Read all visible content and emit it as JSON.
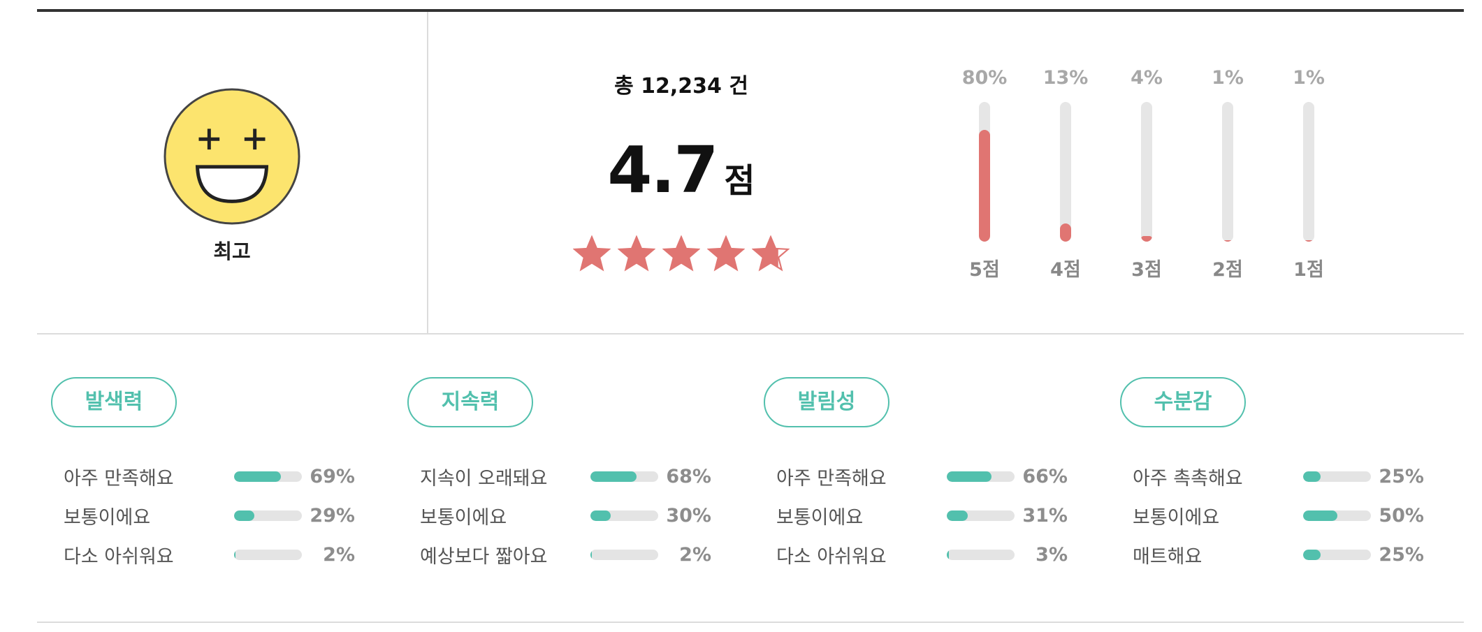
{
  "grade": {
    "label": "최고",
    "icon": "laughing-face-icon"
  },
  "summary": {
    "count_text": "총 12,234 건",
    "score": "4.7",
    "score_unit": "점",
    "rating_value": 4.7,
    "rating_max": 5
  },
  "distribution": [
    {
      "pct_text": "80%",
      "value": 80,
      "label": "5점"
    },
    {
      "pct_text": "13%",
      "value": 13,
      "label": "4점"
    },
    {
      "pct_text": "4%",
      "value": 4,
      "label": "3점"
    },
    {
      "pct_text": "1%",
      "value": 1,
      "label": "2점"
    },
    {
      "pct_text": "1%",
      "value": 1,
      "label": "1점"
    }
  ],
  "attributes": [
    {
      "title": "발색력",
      "rows": [
        {
          "label": "아주 만족해요",
          "pct_text": "69%",
          "value": 69
        },
        {
          "label": "보통이에요",
          "pct_text": "29%",
          "value": 29
        },
        {
          "label": "다소 아쉬워요",
          "pct_text": "2%",
          "value": 2
        }
      ]
    },
    {
      "title": "지속력",
      "rows": [
        {
          "label": "지속이 오래돼요",
          "pct_text": "68%",
          "value": 68
        },
        {
          "label": "보통이에요",
          "pct_text": "30%",
          "value": 30
        },
        {
          "label": "예상보다 짧아요",
          "pct_text": "2%",
          "value": 2
        }
      ]
    },
    {
      "title": "발림성",
      "rows": [
        {
          "label": "아주 만족해요",
          "pct_text": "66%",
          "value": 66
        },
        {
          "label": "보통이에요",
          "pct_text": "31%",
          "value": 31
        },
        {
          "label": "다소 아쉬워요",
          "pct_text": "3%",
          "value": 3
        }
      ]
    },
    {
      "title": "수분감",
      "rows": [
        {
          "label": "아주 촉촉해요",
          "pct_text": "25%",
          "value": 25
        },
        {
          "label": "보통이에요",
          "pct_text": "50%",
          "value": 50
        },
        {
          "label": "매트해요",
          "pct_text": "25%",
          "value": 25
        }
      ]
    }
  ],
  "colors": {
    "accent_red": "#e07572",
    "accent_teal": "#52c0ad",
    "face_yellow": "#fce46e",
    "track_gray": "#e6e6e6"
  }
}
